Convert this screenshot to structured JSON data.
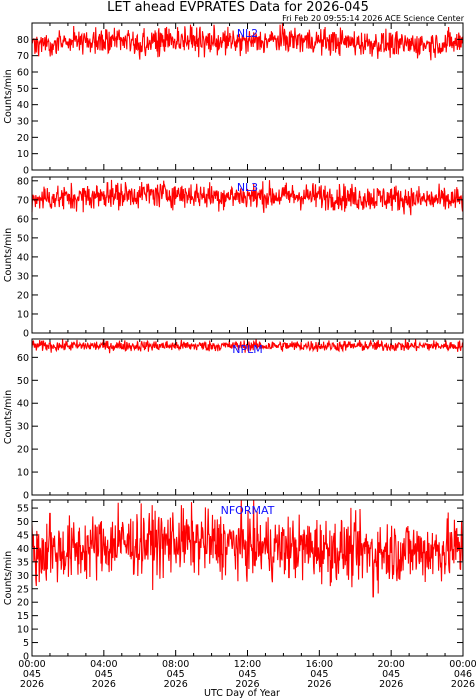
{
  "chart_data": {
    "type": "line",
    "title": "LET ahead EVPRATES Data for 2026-045",
    "timestamp": "Fri Feb 20 09:55:14 2026 ACE Science Center",
    "xlabel": "UTC Day of Year",
    "x_ticks": [
      {
        "hour": 0,
        "time": "00:00",
        "doy": "045",
        "year": "2026"
      },
      {
        "hour": 4,
        "time": "04:00",
        "doy": "045",
        "year": "2026"
      },
      {
        "hour": 8,
        "time": "08:00",
        "doy": "045",
        "year": "2026"
      },
      {
        "hour": 12,
        "time": "12:00",
        "doy": "045",
        "year": "2026"
      },
      {
        "hour": 16,
        "time": "16:00",
        "doy": "045",
        "year": "2026"
      },
      {
        "hour": 20,
        "time": "20:00",
        "doy": "045",
        "year": "2026"
      },
      {
        "hour": 24,
        "time": "00:00",
        "doy": "046",
        "year": "2026"
      }
    ],
    "xlim_hours": [
      0,
      24
    ],
    "line_color": "#ff0000",
    "label_color": "#1010ff",
    "panels": [
      {
        "name": "NL2",
        "ylabel": "Counts/min",
        "ylim": [
          0,
          90
        ],
        "yticks": [
          0,
          10,
          20,
          30,
          40,
          50,
          60,
          70,
          80
        ],
        "profile": [
          77,
          78,
          79,
          78,
          80,
          79,
          78,
          80,
          79,
          78,
          77,
          77,
          78
        ],
        "noise": 4,
        "spikes": [
          [
            9.6,
            69
          ],
          [
            8.5,
            88
          ],
          [
            20.3,
            71
          ]
        ]
      },
      {
        "name": "NL3",
        "ylabel": "Counts/min",
        "ylim": [
          0,
          82
        ],
        "yticks": [
          0,
          10,
          20,
          30,
          40,
          50,
          60,
          70,
          80
        ],
        "profile": [
          71,
          71,
          72,
          73,
          73,
          72,
          72,
          72,
          72,
          71,
          71,
          70,
          70
        ],
        "noise": 3.5,
        "spikes": [
          [
            4.2,
            79
          ],
          [
            12.5,
            66
          ]
        ]
      },
      {
        "name": "NPLM",
        "ylabel": "Counts/min",
        "ylim": [
          0,
          68
        ],
        "yticks": [
          0,
          10,
          20,
          30,
          40,
          50,
          60
        ],
        "profile": [
          65,
          65,
          65,
          65,
          65,
          65,
          65,
          65,
          65,
          65,
          65,
          65,
          65
        ],
        "noise": 1.2,
        "spikes": []
      },
      {
        "name": "NFORMAT",
        "ylabel": "Counts/min",
        "ylim": [
          0,
          58
        ],
        "yticks": [
          0,
          5,
          10,
          15,
          20,
          25,
          30,
          35,
          40,
          45,
          50,
          55
        ],
        "profile": [
          38,
          39,
          41,
          42,
          43,
          42,
          41,
          40,
          40,
          39,
          39,
          39,
          40
        ],
        "noise": 6,
        "spikes": [
          [
            4.8,
            57
          ],
          [
            19.0,
            22
          ],
          [
            1.0,
            53
          ],
          [
            7.3,
            29
          ]
        ]
      }
    ]
  }
}
